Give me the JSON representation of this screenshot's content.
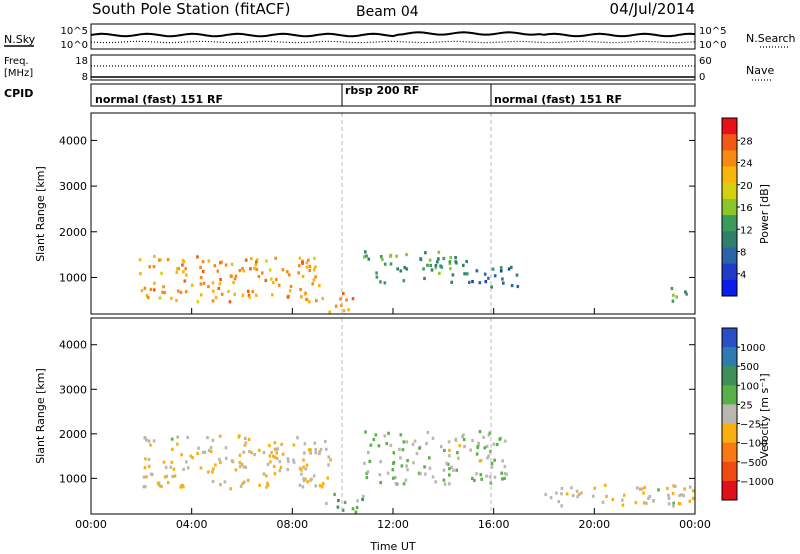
{
  "header": {
    "station": "South Pole Station (fitACF)",
    "beam": "Beam 04",
    "date": "04/Jul/2014"
  },
  "top_panels": {
    "nsky_label": "N.Sky",
    "nsky_ticks": [
      "10^5",
      "10^0"
    ],
    "nsearch_label": "N.Search",
    "nsearch_ticks": [
      "10^5",
      "10^0"
    ],
    "freq_label_line1": "Freq.",
    "freq_label_line2": "[MHz]",
    "freq_ticks": [
      "18",
      "8"
    ],
    "nave_label": "Nave",
    "nave_ticks": [
      "60",
      "0"
    ],
    "cpid_label": "CPID",
    "cpid_segments": [
      {
        "label": "normal (fast) 151 RF",
        "start_hour": 0,
        "end_hour": 10
      },
      {
        "label": "rbsp 200 RF",
        "start_hour": 10,
        "end_hour": 16
      },
      {
        "label": "normal (fast) 151 RF",
        "start_hour": 16,
        "end_hour": 24
      }
    ]
  },
  "axes": {
    "x_ticks": [
      "00:00",
      "04:00",
      "08:00",
      "12:00",
      "16:00",
      "20:00",
      "00:00"
    ],
    "x_label": "Time UT",
    "y_ticks": [
      "1000",
      "2000",
      "3000",
      "4000"
    ],
    "y_label": "Slant Range [km]"
  },
  "power_colorbar": {
    "label": "Power [dB]",
    "ticks": [
      "28",
      "24",
      "20",
      "16",
      "12",
      "8",
      "4"
    ],
    "colors": [
      "#e8101a",
      "#f05a14",
      "#f78a12",
      "#f8b50c",
      "#d6d010",
      "#8cc62c",
      "#3c9a5c",
      "#2f7f6a",
      "#2a64a8",
      "#1e3cc8",
      "#0a1ee8"
    ]
  },
  "velocity_colorbar": {
    "label": "Velocity [m s⁻¹]",
    "ticks": [
      "1000",
      "500",
      "100",
      "25",
      "−25",
      "−100",
      "−500",
      "−1000"
    ],
    "colors": [
      "#2a4ec6",
      "#2f7ab0",
      "#3e8f5a",
      "#58b04a",
      "#b8b8b0",
      "#f8b010",
      "#f87a12",
      "#f04a14",
      "#e0101a"
    ]
  },
  "chart_data": [
    {
      "type": "heatmap",
      "title": "Power",
      "xlabel": "Time UT",
      "ylabel": "Slant Range [km]",
      "xlim": [
        0,
        24
      ],
      "ylim": [
        200,
        4600
      ],
      "zlabel": "Power [dB]",
      "zlim": [
        0,
        30
      ],
      "regions": [
        {
          "hours": [
            1.9,
            9.2
          ],
          "range_km": [
            500,
            1500
          ],
          "power_db": 22
        },
        {
          "hours": [
            9.3,
            10.4
          ],
          "range_km": [
            250,
            700
          ],
          "power_db": 24
        },
        {
          "hours": [
            10.8,
            15.0
          ],
          "range_km": [
            900,
            1600
          ],
          "power_db": 12
        },
        {
          "hours": [
            15.0,
            17.0
          ],
          "range_km": [
            800,
            1300
          ],
          "power_db": 8
        },
        {
          "hours": [
            23.0,
            23.8
          ],
          "range_km": [
            400,
            800
          ],
          "power_db": 12
        }
      ]
    },
    {
      "type": "heatmap",
      "title": "Velocity",
      "xlabel": "Time UT",
      "ylabel": "Slant Range [km]",
      "xlim": [
        0,
        24
      ],
      "ylim": [
        200,
        4600
      ],
      "zlabel": "Velocity [m s⁻¹]",
      "zlim": [
        -1000,
        1000
      ],
      "regions": [
        {
          "hours": [
            2.0,
            9.5
          ],
          "range_km": [
            800,
            2000
          ],
          "velocity": -100
        },
        {
          "hours": [
            10.8,
            16.5
          ],
          "range_km": [
            900,
            2100
          ],
          "velocity": 100
        },
        {
          "hours": [
            9.3,
            10.8
          ],
          "range_km": [
            250,
            700
          ],
          "velocity": 200
        },
        {
          "hours": [
            18.0,
            24.0
          ],
          "range_km": [
            400,
            900
          ],
          "velocity": -100
        }
      ]
    }
  ]
}
